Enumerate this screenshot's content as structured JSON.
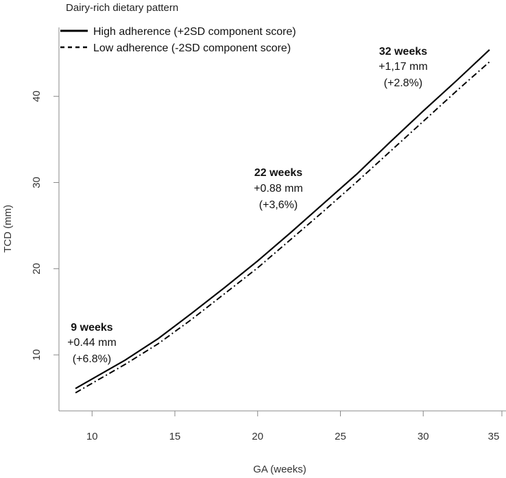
{
  "chart_data": {
    "type": "line",
    "title": "Dairy-rich dietary pattern",
    "xlabel": "GA (weeks)",
    "ylabel": "TCD (mm)",
    "xlim": [
      8,
      35
    ],
    "ylim": [
      3.5,
      48
    ],
    "xticks": [
      10,
      15,
      20,
      25,
      30,
      35
    ],
    "yticks": [
      10,
      20,
      30,
      40
    ],
    "grid": false,
    "legend_position": "top-left",
    "series": [
      {
        "name": "High adherence (+2SD component score)",
        "style": "solid",
        "color": "#000000",
        "x": [
          9,
          10,
          12,
          14,
          16,
          18,
          20,
          22,
          24,
          26,
          28,
          30,
          32,
          34
        ],
        "y": [
          6.1,
          7.2,
          9.4,
          11.9,
          14.8,
          17.8,
          20.9,
          24.2,
          27.6,
          31.0,
          34.7,
          38.3,
          41.8,
          45.4
        ]
      },
      {
        "name": "Low adherence (-2SD component score)",
        "style": "dashed",
        "color": "#000000",
        "x": [
          9,
          10,
          12,
          14,
          16,
          18,
          20,
          22,
          24,
          26,
          28,
          30,
          32,
          34
        ],
        "y": [
          5.6,
          6.7,
          8.9,
          11.3,
          14.1,
          17.1,
          20.1,
          23.4,
          26.7,
          30.1,
          33.6,
          37.1,
          40.6,
          44.0
        ]
      }
    ],
    "annotations": [
      {
        "id": "w9",
        "weeks": "9 weeks",
        "diff": "+0.44 mm",
        "pct": "(+6.8%)"
      },
      {
        "id": "w22",
        "weeks": "22 weeks",
        "diff": "+0.88 mm",
        "pct": "(+3,6%)"
      },
      {
        "id": "w32",
        "weeks": "32 weeks",
        "diff": "+1,17 mm",
        "pct": "(+2.8%)"
      }
    ]
  }
}
